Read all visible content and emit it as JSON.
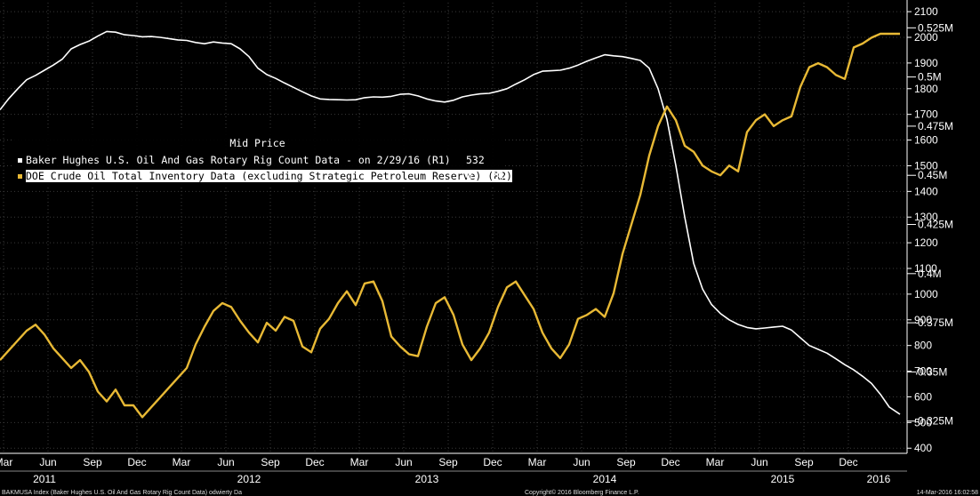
{
  "chart_data": {
    "type": "line",
    "legend": {
      "title": "Mid Price",
      "entries": [
        {
          "label": "Baker Hughes U.S. Oil And Gas Rotary Rig Count Data -  on 2/29/16  (R1)",
          "value": "532",
          "color": "#ffffff"
        },
        {
          "label": "DOE Crude Oil Total Inventory Data (excluding Strategic Petroleum Reserve)  (R2)",
          "value": "0.522M",
          "color": "#e8b935"
        }
      ]
    },
    "y_axis_r1": {
      "ticks": [
        400,
        500,
        600,
        700,
        800,
        900,
        1000,
        1100,
        1200,
        1300,
        1400,
        1500,
        1600,
        1700,
        1800,
        1900,
        2000,
        2100
      ],
      "ylim": [
        380,
        2135
      ]
    },
    "y_axis_r2": {
      "ticks": [
        "0.325M",
        "0.35M",
        "0.375M",
        "0.4M",
        "0.425M",
        "0.45M",
        "0.475M",
        "0.5M",
        "0.525M"
      ],
      "tick_values": [
        0.325,
        0.35,
        0.375,
        0.4,
        0.425,
        0.45,
        0.475,
        0.5,
        0.525
      ],
      "ylim": [
        0.3086,
        0.5378
      ]
    },
    "x_axis": {
      "months": [
        "Mar",
        "Jun",
        "Sep",
        "Dec",
        "Mar",
        "Jun",
        "Sep",
        "Dec",
        "Mar",
        "Jun",
        "Sep",
        "Dec",
        "Mar",
        "Jun",
        "Sep",
        "Dec",
        "Mar",
        "Jun",
        "Sep",
        "Dec"
      ],
      "month_values": [
        2011.12,
        2011.37,
        2011.62,
        2011.87,
        2012.12,
        2012.37,
        2012.62,
        2012.87,
        2013.12,
        2013.37,
        2013.62,
        2013.87,
        2014.12,
        2014.37,
        2014.62,
        2014.87,
        2015.12,
        2015.37,
        2015.62,
        2015.87
      ],
      "years": [
        "2011",
        "2012",
        "2013",
        "2014",
        "2015",
        "2016"
      ],
      "year_values": [
        2011.35,
        2012.5,
        2013.5,
        2014.5,
        2015.5,
        2016.04
      ],
      "xlim": [
        2011.1,
        2016.2
      ]
    },
    "series": [
      {
        "name": "Baker Hughes U.S. Oil And Gas Rotary Rig Count Data -  on 2/29/16  (R1)",
        "axis": "R1",
        "color": "#ffffff",
        "x": [
          2011.1,
          2011.15,
          2011.2,
          2011.25,
          2011.3,
          2011.35,
          2011.4,
          2011.45,
          2011.5,
          2011.55,
          2011.6,
          2011.65,
          2011.7,
          2011.75,
          2011.8,
          2011.85,
          2011.9,
          2011.95,
          2012.0,
          2012.05,
          2012.1,
          2012.15,
          2012.2,
          2012.25,
          2012.3,
          2012.35,
          2012.4,
          2012.45,
          2012.5,
          2012.55,
          2012.6,
          2012.65,
          2012.7,
          2012.75,
          2012.8,
          2012.85,
          2012.9,
          2012.95,
          2013.0,
          2013.05,
          2013.1,
          2013.15,
          2013.2,
          2013.25,
          2013.3,
          2013.35,
          2013.4,
          2013.45,
          2013.5,
          2013.55,
          2013.6,
          2013.65,
          2013.7,
          2013.75,
          2013.8,
          2013.85,
          2013.9,
          2013.95,
          2014.0,
          2014.05,
          2014.1,
          2014.15,
          2014.2,
          2014.25,
          2014.3,
          2014.35,
          2014.4,
          2014.45,
          2014.5,
          2014.55,
          2014.6,
          2014.65,
          2014.7,
          2014.75,
          2014.8,
          2014.85,
          2014.9,
          2014.95,
          2015.0,
          2015.05,
          2015.1,
          2015.15,
          2015.2,
          2015.25,
          2015.3,
          2015.35,
          2015.4,
          2015.45,
          2015.5,
          2015.55,
          2015.6,
          2015.65,
          2015.7,
          2015.75,
          2015.8,
          2015.85,
          2015.9,
          2015.95,
          2016.0,
          2016.05,
          2016.1,
          2016.16
        ],
        "y": [
          1718,
          1762,
          1800,
          1835,
          1852,
          1872,
          1892,
          1915,
          1955,
          1972,
          1985,
          2005,
          2023,
          2020,
          2010,
          2007,
          2002,
          2003,
          2000,
          1995,
          1990,
          1988,
          1980,
          1975,
          1982,
          1978,
          1975,
          1955,
          1925,
          1880,
          1855,
          1840,
          1822,
          1805,
          1788,
          1772,
          1760,
          1758,
          1757,
          1756,
          1757,
          1765,
          1768,
          1767,
          1770,
          1778,
          1780,
          1772,
          1760,
          1752,
          1748,
          1755,
          1768,
          1775,
          1780,
          1782,
          1790,
          1800,
          1818,
          1835,
          1855,
          1868,
          1870,
          1872,
          1880,
          1892,
          1907,
          1920,
          1932,
          1928,
          1925,
          1918,
          1910,
          1880,
          1800,
          1680,
          1500,
          1300,
          1120,
          1020,
          960,
          925,
          900,
          882,
          870,
          865,
          868,
          872,
          875,
          860,
          830,
          800,
          785,
          770,
          748,
          725,
          705,
          680,
          652,
          610,
          560,
          532
        ]
      },
      {
        "name": "DOE Crude Oil Total Inventory Data (excluding Strategic Petroleum Reserve)  (R2)",
        "axis": "R2",
        "color": "#e8b935",
        "x": [
          2011.1,
          2011.15,
          2011.2,
          2011.25,
          2011.3,
          2011.35,
          2011.4,
          2011.45,
          2011.5,
          2011.55,
          2011.6,
          2011.65,
          2011.7,
          2011.75,
          2011.8,
          2011.85,
          2011.9,
          2011.95,
          2012.0,
          2012.05,
          2012.1,
          2012.15,
          2012.2,
          2012.25,
          2012.3,
          2012.35,
          2012.4,
          2012.45,
          2012.5,
          2012.55,
          2012.6,
          2012.65,
          2012.7,
          2012.75,
          2012.8,
          2012.85,
          2012.9,
          2012.95,
          2013.0,
          2013.05,
          2013.1,
          2013.15,
          2013.2,
          2013.25,
          2013.3,
          2013.35,
          2013.4,
          2013.45,
          2013.5,
          2013.55,
          2013.6,
          2013.65,
          2013.7,
          2013.75,
          2013.8,
          2013.85,
          2013.9,
          2013.95,
          2014.0,
          2014.05,
          2014.1,
          2014.15,
          2014.2,
          2014.25,
          2014.3,
          2014.35,
          2014.4,
          2014.45,
          2014.5,
          2014.55,
          2014.6,
          2014.65,
          2014.7,
          2014.75,
          2014.8,
          2014.85,
          2014.9,
          2014.95,
          2015.0,
          2015.05,
          2015.1,
          2015.15,
          2015.2,
          2015.25,
          2015.3,
          2015.35,
          2015.4,
          2015.45,
          2015.5,
          2015.55,
          2015.6,
          2015.65,
          2015.7,
          2015.75,
          2015.8,
          2015.85,
          2015.9,
          2015.95,
          2016.0,
          2016.05,
          2016.1,
          2016.16
        ],
        "y": [
          0.356,
          0.361,
          0.366,
          0.371,
          0.374,
          0.369,
          0.362,
          0.357,
          0.352,
          0.356,
          0.35,
          0.34,
          0.335,
          0.341,
          0.333,
          0.333,
          0.327,
          0.332,
          0.337,
          0.342,
          0.347,
          0.352,
          0.364,
          0.373,
          0.381,
          0.385,
          0.383,
          0.376,
          0.37,
          0.365,
          0.375,
          0.371,
          0.378,
          0.376,
          0.363,
          0.36,
          0.372,
          0.377,
          0.385,
          0.391,
          0.384,
          0.395,
          0.396,
          0.386,
          0.368,
          0.363,
          0.359,
          0.358,
          0.373,
          0.385,
          0.388,
          0.379,
          0.364,
          0.356,
          0.362,
          0.37,
          0.383,
          0.393,
          0.396,
          0.389,
          0.382,
          0.37,
          0.362,
          0.357,
          0.364,
          0.377,
          0.379,
          0.382,
          0.378,
          0.39,
          0.41,
          0.425,
          0.44,
          0.46,
          0.475,
          0.485,
          0.478,
          0.465,
          0.462,
          0.455,
          0.452,
          0.45,
          0.455,
          0.452,
          0.472,
          0.478,
          0.481,
          0.475,
          0.478,
          0.48,
          0.495,
          0.505,
          0.507,
          0.505,
          0.501,
          0.499,
          0.515,
          0.517,
          0.52,
          0.522,
          0.522,
          0.522
        ]
      }
    ]
  },
  "footer": {
    "left": "BAKMUSA Index (Baker Hughes U.S. Oil And Gas Rotary Rig Count Data) odwierty  Da",
    "center": "Copyright© 2016 Bloomberg Finance L.P.",
    "right": "14-Mar-2016 16:02:58"
  }
}
